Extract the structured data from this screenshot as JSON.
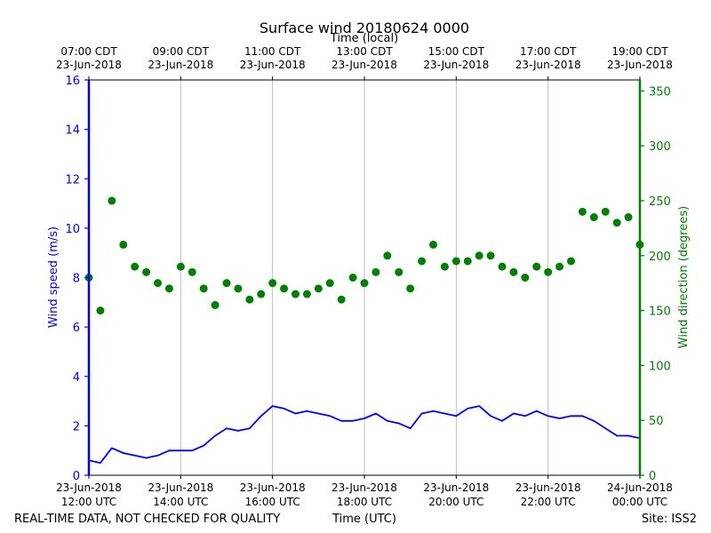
{
  "chart_data": {
    "type": "line",
    "title": "Surface wind 20180624 0000",
    "top_axis_label": "Time (local)",
    "xlabel": "Time (UTC)",
    "ylabel": "Wind speed (m/s)",
    "y2label": "Wind direction (degrees)",
    "footer_left": "REAL-TIME DATA, NOT CHECKED FOR QUALITY",
    "footer_right": "Site: ISS2",
    "xlim": [
      12.0,
      24.0
    ],
    "ylim": [
      0,
      16
    ],
    "y2lim": [
      0,
      360
    ],
    "yticks": [
      "0",
      "2",
      "4",
      "6",
      "8",
      "10",
      "12",
      "14",
      "16"
    ],
    "y2ticks": [
      "0",
      "50",
      "100",
      "150",
      "200",
      "250",
      "300",
      "350"
    ],
    "xticks_bottom": [
      {
        "value": 12,
        "line1": "23-Jun-2018",
        "line2": "12:00 UTC"
      },
      {
        "value": 14,
        "line1": "23-Jun-2018",
        "line2": "14:00 UTC"
      },
      {
        "value": 16,
        "line1": "23-Jun-2018",
        "line2": "16:00 UTC"
      },
      {
        "value": 18,
        "line1": "23-Jun-2018",
        "line2": "18:00 UTC"
      },
      {
        "value": 20,
        "line1": "23-Jun-2018",
        "line2": "20:00 UTC"
      },
      {
        "value": 22,
        "line1": "23-Jun-2018",
        "line2": "22:00 UTC"
      },
      {
        "value": 24,
        "line1": "24-Jun-2018",
        "line2": "00:00 UTC"
      }
    ],
    "xticks_top": [
      {
        "value": 12,
        "line1": "07:00 CDT",
        "line2": "23-Jun-2018"
      },
      {
        "value": 14,
        "line1": "09:00 CDT",
        "line2": "23-Jun-2018"
      },
      {
        "value": 16,
        "line1": "11:00 CDT",
        "line2": "23-Jun-2018"
      },
      {
        "value": 18,
        "line1": "13:00 CDT",
        "line2": "23-Jun-2018"
      },
      {
        "value": 20,
        "line1": "15:00 CDT",
        "line2": "23-Jun-2018"
      },
      {
        "value": 22,
        "line1": "17:00 CDT",
        "line2": "23-Jun-2018"
      },
      {
        "value": 24,
        "line1": "19:00 CDT",
        "line2": "23-Jun-2018"
      }
    ],
    "series": [
      {
        "name": "Wind speed",
        "axis": "left",
        "style": "line",
        "color": "#0000ff",
        "x": [
          12.0,
          12.25,
          12.5,
          12.75,
          13.0,
          13.25,
          13.5,
          13.75,
          14.0,
          14.25,
          14.5,
          14.75,
          15.0,
          15.25,
          15.5,
          15.75,
          16.0,
          16.25,
          16.5,
          16.75,
          17.0,
          17.25,
          17.5,
          17.75,
          18.0,
          18.25,
          18.5,
          18.75,
          19.0,
          19.25,
          19.5,
          19.75,
          20.0,
          20.25,
          20.5,
          20.75,
          21.0,
          21.25,
          21.5,
          21.75,
          22.0,
          22.25,
          22.5,
          22.75,
          23.0,
          23.25,
          23.5,
          23.75,
          24.0
        ],
        "values": [
          0.6,
          0.5,
          1.1,
          0.9,
          0.8,
          0.7,
          0.8,
          1.0,
          1.0,
          1.0,
          1.2,
          1.6,
          1.9,
          1.8,
          1.9,
          2.4,
          2.8,
          2.7,
          2.5,
          2.6,
          2.5,
          2.4,
          2.2,
          2.2,
          2.3,
          2.5,
          2.2,
          2.1,
          1.9,
          2.5,
          2.6,
          2.5,
          2.4,
          2.7,
          2.8,
          2.4,
          2.2,
          2.5,
          2.4,
          2.6,
          2.4,
          2.3,
          2.4,
          2.4,
          2.2,
          1.9,
          1.6,
          1.6,
          1.5
        ]
      },
      {
        "name": "Wind direction",
        "axis": "right",
        "style": "scatter",
        "color": "#008000",
        "x": [
          12.0,
          12.25,
          12.5,
          12.75,
          13.0,
          13.25,
          13.5,
          13.75,
          14.0,
          14.25,
          14.5,
          14.75,
          15.0,
          15.25,
          15.5,
          15.75,
          16.0,
          16.25,
          16.5,
          16.75,
          17.0,
          17.25,
          17.5,
          17.75,
          18.0,
          18.25,
          18.5,
          18.75,
          19.0,
          19.25,
          19.5,
          19.75,
          20.0,
          20.25,
          20.5,
          20.75,
          21.0,
          21.25,
          21.5,
          21.75,
          22.0,
          22.25,
          22.5,
          22.75,
          23.0,
          23.25,
          23.5,
          23.75,
          24.0
        ],
        "values": [
          180,
          150,
          250,
          210,
          190,
          185,
          175,
          170,
          190,
          185,
          170,
          155,
          175,
          170,
          160,
          165,
          175,
          170,
          165,
          165,
          170,
          175,
          160,
          180,
          175,
          185,
          200,
          185,
          170,
          195,
          210,
          190,
          195,
          195,
          200,
          200,
          190,
          185,
          180,
          190,
          185,
          190,
          195,
          240,
          235,
          240,
          230,
          235,
          210
        ]
      }
    ]
  }
}
